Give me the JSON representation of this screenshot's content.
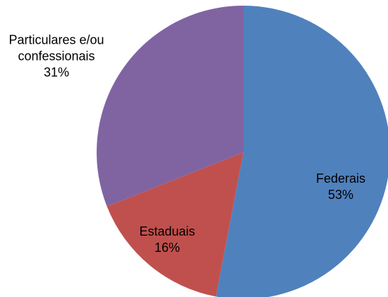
{
  "chart_data": {
    "type": "pie",
    "categories": [
      "Federais",
      "Estaduais",
      "Particulares e/ou confessionais"
    ],
    "values": [
      53,
      16,
      31
    ],
    "value_labels": [
      "53%",
      "16%",
      "31%"
    ],
    "colors": [
      "#4f81bd",
      "#c0504d",
      "#8064a2"
    ]
  }
}
